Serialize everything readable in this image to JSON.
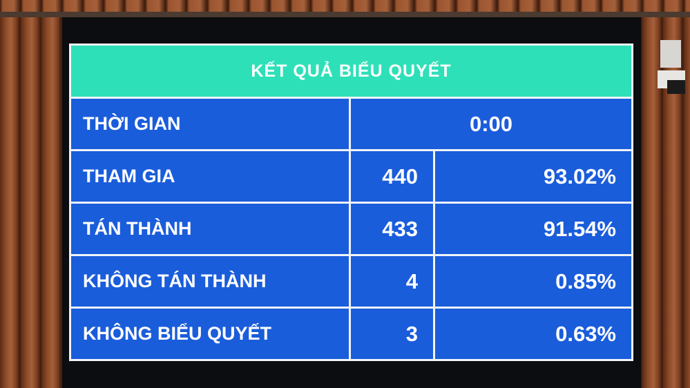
{
  "colors": {
    "header": "#2ee0b8",
    "cells": "#1a5ddb",
    "text": "#ffffff"
  },
  "title": "KẾT QUẢ BIỂU QUYẾT",
  "time": {
    "label": "THỜI GIAN",
    "value": "0:00"
  },
  "rows": [
    {
      "label": "THAM GIA",
      "count": "440",
      "percent": "93.02%"
    },
    {
      "label": "TÁN THÀNH",
      "count": "433",
      "percent": "91.54%"
    },
    {
      "label": "KHÔNG TÁN THÀNH",
      "count": "4",
      "percent": "0.85%"
    },
    {
      "label": "KHÔNG BIỂU QUYẾT",
      "count": "3",
      "percent": "0.63%"
    }
  ]
}
